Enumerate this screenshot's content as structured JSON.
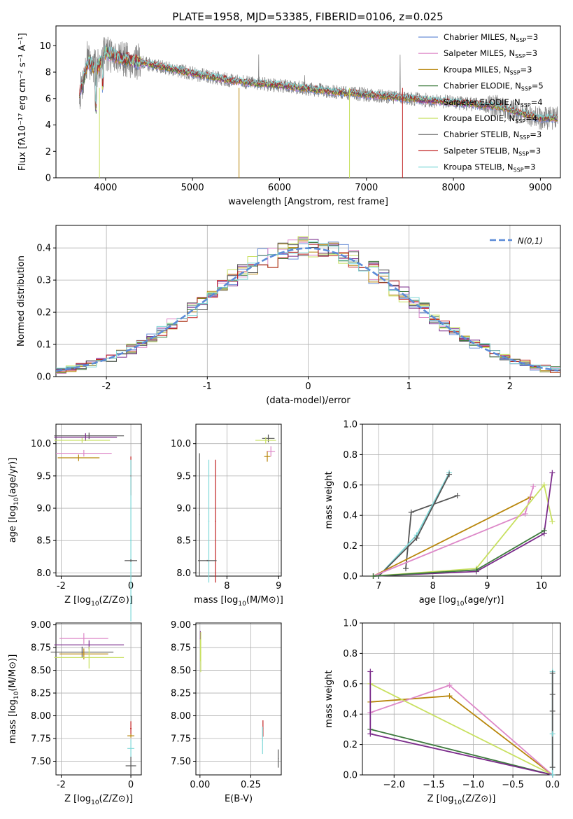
{
  "figure": {
    "title": "PLATE=1958, MJD=53385, FIBERID=0106, z=0.025"
  },
  "series_colors": [
    "#6a8fd8",
    "#dd88c8",
    "#b8860b",
    "#3d7a3d",
    "#7a2a8a",
    "#c8e060",
    "#555555",
    "#c02020",
    "#7fd8d8"
  ],
  "chart_data": [
    {
      "id": "spectrum",
      "type": "line",
      "title": "PLATE=1958, MJD=53385, FIBERID=0106, z=0.025",
      "xlabel": "wavelength [Angstrom, rest frame]",
      "ylabel": "Flux [fλ10⁻¹⁷ erg cm⁻² s⁻¹ A⁻¹]",
      "xlim": [
        3430,
        9230
      ],
      "ylim": [
        0,
        11.5
      ],
      "xticks": [
        4000,
        5000,
        6000,
        7000,
        8000,
        9000
      ],
      "yticks": [
        0,
        2,
        4,
        6,
        8,
        10
      ],
      "legend_position": "upper right",
      "data_color": "#808080",
      "continuum_wavelength": [
        3700,
        3800,
        3900,
        4000,
        4200,
        4500,
        5000,
        5500,
        6000,
        6500,
        7000,
        7500,
        8000,
        8500,
        9000
      ],
      "continuum_flux": [
        6.3,
        8.8,
        8.2,
        9.5,
        9.0,
        8.6,
        7.9,
        7.3,
        7.0,
        6.6,
        6.3,
        6.0,
        5.7,
        5.4,
        4.5
      ],
      "series": [
        {
          "name": "Chabrier MILES, N_SSP=3"
        },
        {
          "name": "Salpeter MILES, N_SSP=3"
        },
        {
          "name": "Kroupa MILES, N_SSP=3"
        },
        {
          "name": "Chabrier ELODIE, N_SSP=5"
        },
        {
          "name": "Salpeter ELODIE, N_SSP=4"
        },
        {
          "name": "Kroupa ELODIE, N_SSP=4"
        },
        {
          "name": "Chabrier STELIB, N_SSP=3"
        },
        {
          "name": "Salpeter STELIB, N_SSP=3"
        },
        {
          "name": "Kroupa STELIB, N_SSP=3"
        }
      ],
      "legend_labels": [
        [
          "Chabrier MILES, N",
          "SSP",
          "=3"
        ],
        [
          "Salpeter MILES, N",
          "SSP",
          "=3"
        ],
        [
          "Kroupa MILES, N",
          "SSP",
          "=3"
        ],
        [
          "Chabrier ELODIE, N",
          "SSP",
          "=5"
        ],
        [
          "Salpeter ELODIE, N",
          "SSP",
          "=4"
        ],
        [
          "Kroupa ELODIE, N",
          "SSP",
          "=4"
        ],
        [
          "Chabrier STELIB, N",
          "SSP",
          "=3"
        ],
        [
          "Salpeter STELIB, N",
          "SSP",
          "=3"
        ],
        [
          "Kroupa STELIB, N",
          "SSP",
          "=3"
        ]
      ]
    },
    {
      "id": "residuals",
      "type": "step",
      "xlabel": "(data-model)/error",
      "ylabel": "Normed distribution",
      "xlim": [
        -2.5,
        2.5
      ],
      "ylim": [
        0,
        0.47
      ],
      "xticks": [
        -2,
        -1,
        0,
        1,
        2
      ],
      "yticks": [
        0.0,
        0.1,
        0.2,
        0.3,
        0.4
      ],
      "ytick_labels": [
        "0.0",
        "0.1",
        "0.2",
        "0.3",
        "0.4"
      ],
      "grid": true,
      "bin_edges_range": [
        -2.5,
        2.5,
        0.1
      ],
      "reference_curve": {
        "name": "N(0,1)",
        "mean": 0,
        "sigma": 1,
        "style": "dashed",
        "color": "#5b8bd8"
      },
      "legend_position": "upper right"
    },
    {
      "id": "age_vs_Z",
      "type": "errorbar",
      "xlabel": "Z [log10(Z/Z⊙)]",
      "ylabel": "age [log10(age/yr)]",
      "xlim": [
        -2.15,
        0.3
      ],
      "ylim": [
        7.95,
        10.3
      ],
      "xticks": [
        -2,
        0
      ],
      "yticks": [
        8.0,
        8.5,
        9.0,
        9.5,
        10.0
      ],
      "ytick_labels": [
        "8.0",
        "8.5",
        "9.0",
        "9.5",
        "10.0"
      ],
      "grid": true,
      "points": [
        {
          "x": -1.2,
          "y": 10.12,
          "xerr": 1.0,
          "yerr": 0.05,
          "c": 6
        },
        {
          "x": -1.3,
          "y": 10.1,
          "xerr": 0.9,
          "yerr": 0.06,
          "c": 4
        },
        {
          "x": -1.4,
          "y": 10.05,
          "xerr": 0.8,
          "yerr": 0.04,
          "c": 5
        },
        {
          "x": -1.35,
          "y": 9.85,
          "xerr": 0.8,
          "yerr": 0.05,
          "c": 1
        },
        {
          "x": -1.5,
          "y": 9.78,
          "xerr": 0.6,
          "yerr": 0.05,
          "c": 2
        },
        {
          "x": 0.0,
          "y": 9.5,
          "xerr": 0.02,
          "yerr": 0.3,
          "c": 7
        },
        {
          "x": 0.0,
          "y": 8.5,
          "xerr": 0.02,
          "yerr": 1.25,
          "c": 8
        },
        {
          "x": 0.0,
          "y": 8.19,
          "xerr": 0.18,
          "yerr": 0.02,
          "c": 6
        }
      ]
    },
    {
      "id": "age_vs_mass",
      "type": "errorbar",
      "xlabel": "mass [log10(M/M⊙)]",
      "ylabel": "",
      "xlim": [
        7.4,
        9.05
      ],
      "ylim": [
        7.95,
        10.3
      ],
      "xticks": [
        8,
        9
      ],
      "yticks": [
        8.0,
        8.5,
        9.0,
        9.5,
        10.0
      ],
      "ytick_labels": [
        "8.0",
        "8.5",
        "9.0",
        "9.5",
        "10.0"
      ],
      "grid": true,
      "points": [
        {
          "x": 7.47,
          "y": 8.9,
          "xerr": 0.01,
          "yerr": 0.95,
          "c": 6
        },
        {
          "x": 7.65,
          "y": 8.8,
          "xerr": 0.01,
          "yerr": 0.95,
          "c": 8
        },
        {
          "x": 7.78,
          "y": 8.8,
          "xerr": 0.01,
          "yerr": 0.95,
          "c": 7
        },
        {
          "x": 7.62,
          "y": 8.19,
          "xerr": 0.18,
          "yerr": 0.01,
          "c": 6
        },
        {
          "x": 8.8,
          "y": 10.08,
          "xerr": 0.12,
          "yerr": 0.06,
          "c": 6
        },
        {
          "x": 8.75,
          "y": 10.05,
          "xerr": 0.2,
          "yerr": 0.05,
          "c": 5
        },
        {
          "x": 8.85,
          "y": 9.88,
          "xerr": 0.08,
          "yerr": 0.08,
          "c": 1
        },
        {
          "x": 8.78,
          "y": 9.8,
          "xerr": 0.06,
          "yerr": 0.08,
          "c": 2
        }
      ]
    },
    {
      "id": "weight_vs_age",
      "type": "line",
      "xlabel": "age [log10(age/yr)]",
      "ylabel": "mass weight",
      "xlim": [
        6.7,
        10.35
      ],
      "ylim": [
        0,
        1.0
      ],
      "xticks": [
        7,
        8,
        9,
        10
      ],
      "yticks": [
        0.0,
        0.2,
        0.4,
        0.6,
        0.8,
        1.0
      ],
      "ytick_labels": [
        "0.0",
        "0.2",
        "0.4",
        "0.6",
        "0.8",
        "1.0"
      ],
      "grid": true,
      "series": [
        {
          "c": 6,
          "x": [
            7.5,
            7.6,
            8.45
          ],
          "y": [
            0.05,
            0.42,
            0.53
          ]
        },
        {
          "c": 8,
          "x": [
            7.0,
            7.7,
            8.3
          ],
          "y": [
            0.0,
            0.27,
            0.68
          ]
        },
        {
          "c": 6,
          "x": [
            7.0,
            7.7,
            8.3
          ],
          "y": [
            0.0,
            0.25,
            0.67
          ]
        },
        {
          "c": 2,
          "x": [
            6.9,
            9.8
          ],
          "y": [
            0.0,
            0.52
          ]
        },
        {
          "c": 1,
          "x": [
            6.9,
            9.7,
            9.85
          ],
          "y": [
            0.0,
            0.41,
            0.59
          ]
        },
        {
          "c": 5,
          "x": [
            6.9,
            8.8,
            10.05,
            10.2
          ],
          "y": [
            0.0,
            0.05,
            0.6,
            0.36
          ]
        },
        {
          "c": 4,
          "x": [
            6.9,
            8.8,
            10.05,
            10.2
          ],
          "y": [
            0.0,
            0.03,
            0.28,
            0.68
          ]
        },
        {
          "c": 3,
          "x": [
            6.9,
            8.8,
            10.05
          ],
          "y": [
            0.0,
            0.04,
            0.3
          ]
        }
      ]
    },
    {
      "id": "mass_vs_Z",
      "type": "errorbar",
      "xlabel": "Z [log10(Z/Z⊙)]",
      "ylabel": "mass [log10(M/M⊙)]",
      "xlim": [
        -2.15,
        0.3
      ],
      "ylim": [
        7.35,
        9.02
      ],
      "xticks": [
        -2,
        0
      ],
      "yticks": [
        7.5,
        7.75,
        8.0,
        8.25,
        8.5,
        8.75,
        9.0
      ],
      "ytick_labels": [
        "7.50",
        "7.75",
        "8.00",
        "8.25",
        "8.50",
        "8.75",
        "9.00"
      ],
      "grid": true,
      "points": [
        {
          "x": -1.35,
          "y": 8.85,
          "xerr": 0.7,
          "yerr": 0.06,
          "c": 1
        },
        {
          "x": -1.2,
          "y": 8.78,
          "xerr": 1.0,
          "yerr": 0.05,
          "c": 4
        },
        {
          "x": -1.4,
          "y": 8.7,
          "xerr": 0.9,
          "yerr": 0.06,
          "c": 6
        },
        {
          "x": -1.35,
          "y": 8.68,
          "xerr": 0.7,
          "yerr": 0.06,
          "c": 2
        },
        {
          "x": -1.2,
          "y": 8.64,
          "xerr": 1.0,
          "yerr": 0.12,
          "c": 5
        },
        {
          "x": 0.0,
          "y": 7.86,
          "xerr": 0.02,
          "yerr": 0.08,
          "c": 7
        },
        {
          "x": 0.0,
          "y": 7.78,
          "xerr": 0.1,
          "yerr": 0.02,
          "c": 2
        },
        {
          "x": 0.0,
          "y": 7.64,
          "xerr": 0.1,
          "yerr": 0.1,
          "c": 8
        },
        {
          "x": 0.0,
          "y": 7.45,
          "xerr": 0.15,
          "yerr": 0.1,
          "c": 6
        }
      ]
    },
    {
      "id": "mass_vs_ebv",
      "type": "errorbar",
      "xlabel": "E(B-V)",
      "ylabel": "",
      "xlim": [
        -0.02,
        0.4
      ],
      "ylim": [
        7.35,
        9.02
      ],
      "xticks": [
        0.0,
        0.25
      ],
      "xtick_labels": [
        "0.00",
        "0.25"
      ],
      "yticks": [
        7.5,
        7.75,
        8.0,
        8.25,
        8.5,
        8.75,
        9.0
      ],
      "ytick_labels": [
        "7.50",
        "7.75",
        "8.00",
        "8.25",
        "8.50",
        "8.75",
        "9.00"
      ],
      "grid": true,
      "points": [
        {
          "x": 0.002,
          "y": 8.85,
          "xerr": 0.002,
          "yerr": 0.08,
          "c": 4
        },
        {
          "x": 0.002,
          "y": 8.72,
          "xerr": 0.002,
          "yerr": 0.12,
          "c": 5
        },
        {
          "x": 0.004,
          "y": 8.7,
          "xerr": 0.002,
          "yerr": 0.22,
          "c": 5
        },
        {
          "x": 0.31,
          "y": 7.86,
          "xerr": 0.002,
          "yerr": 0.09,
          "c": 7
        },
        {
          "x": 0.308,
          "y": 7.73,
          "xerr": 0.002,
          "yerr": 0.15,
          "c": 8
        },
        {
          "x": 0.385,
          "y": 7.53,
          "xerr": 0.002,
          "yerr": 0.1,
          "c": 6
        }
      ]
    },
    {
      "id": "weight_vs_Z",
      "type": "line",
      "xlabel": "Z [log10(Z/Z⊙)]",
      "ylabel": "mass weight",
      "xlim": [
        -2.4,
        0.1
      ],
      "ylim": [
        0,
        1.0
      ],
      "xticks": [
        -2.0,
        -1.5,
        -1.0,
        -0.5,
        0.0
      ],
      "xtick_labels": [
        "−2.0",
        "−1.5",
        "−1.0",
        "−0.5",
        "0.0"
      ],
      "yticks": [
        0.0,
        0.2,
        0.4,
        0.6,
        0.8,
        1.0
      ],
      "ytick_labels": [
        "0.0",
        "0.2",
        "0.4",
        "0.6",
        "0.8",
        "1.0"
      ],
      "grid": true,
      "series": [
        {
          "c": 2,
          "x": [
            -2.3,
            -1.3,
            0.0
          ],
          "y": [
            0.48,
            0.52,
            0.0
          ]
        },
        {
          "c": 1,
          "x": [
            -2.3,
            -1.3,
            0.0
          ],
          "y": [
            0.41,
            0.59,
            0.0
          ]
        },
        {
          "c": 5,
          "x": [
            -2.3,
            0.0
          ],
          "y": [
            0.6,
            0.0
          ]
        },
        {
          "c": 3,
          "x": [
            -2.3,
            0.0
          ],
          "y": [
            0.3,
            0.0
          ]
        },
        {
          "c": 4,
          "x": [
            -2.3,
            -2.3,
            0.0
          ],
          "y": [
            0.68,
            0.27,
            0.0
          ]
        },
        {
          "c": 8,
          "x": [
            0.0,
            0.0
          ],
          "y": [
            0.68,
            0.0
          ]
        },
        {
          "c": 6,
          "x": [
            0.0,
            0.0,
            0.0,
            0.0
          ],
          "y": [
            0.67,
            0.53,
            0.42,
            0.05
          ]
        },
        {
          "c": 8,
          "x": [
            0.0
          ],
          "y": [
            0.27
          ]
        }
      ]
    }
  ]
}
